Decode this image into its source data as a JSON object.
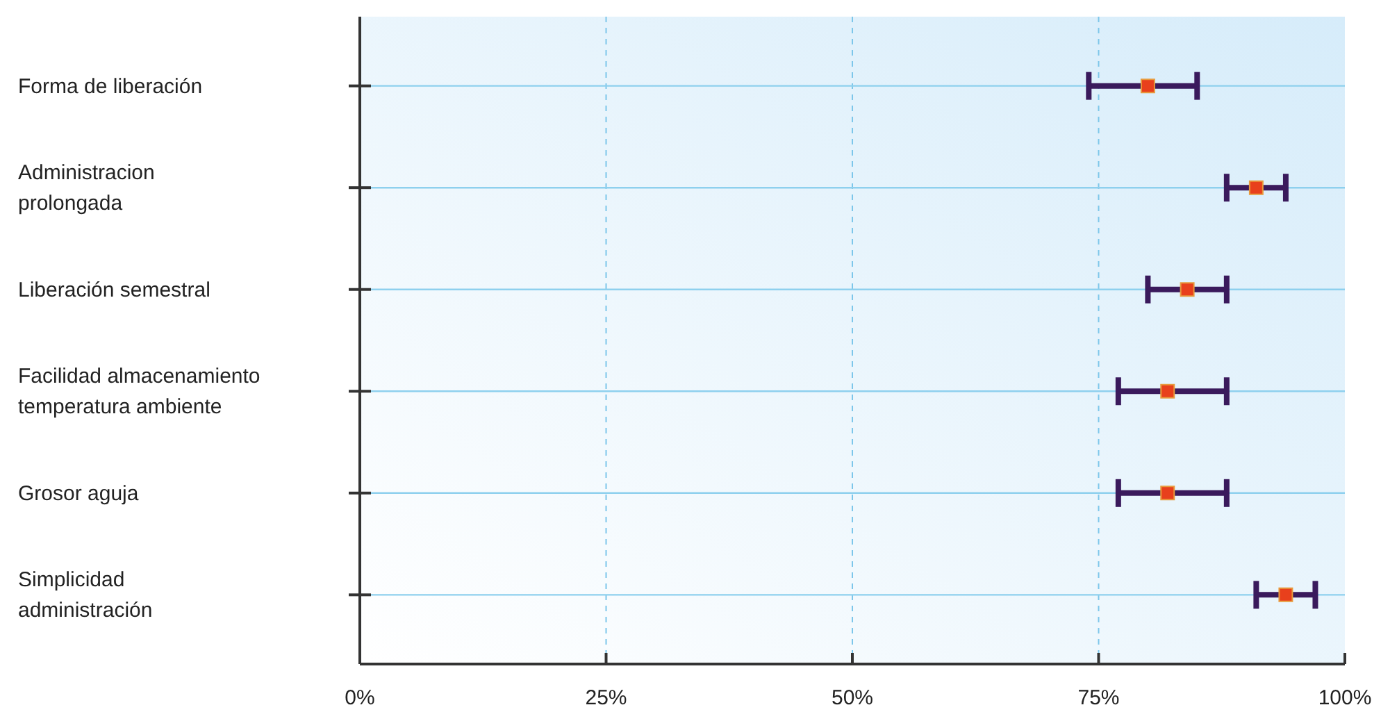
{
  "chart_data": {
    "type": "scatter",
    "orientation": "horizontal",
    "categories": [
      "Forma de liberación",
      "Administracion prolongada",
      "Liberación semestral",
      "Facilidad almacenamiento temperatura ambiente",
      "Grosor aguja",
      "Simplicidad administración"
    ],
    "values": [
      80,
      91,
      84,
      82,
      82,
      94
    ],
    "errors": [
      [
        74,
        85
      ],
      [
        88,
        94
      ],
      [
        80,
        88
      ],
      [
        77,
        88
      ],
      [
        77,
        88
      ],
      [
        91,
        97
      ]
    ],
    "color": "#e8401c",
    "marker": "square",
    "xlim": [
      0,
      100
    ],
    "xticks": [
      {
        "value": 0,
        "label": "0%"
      },
      {
        "value": 25,
        "label": "25%"
      },
      {
        "value": 50,
        "label": "50%"
      },
      {
        "value": 75,
        "label": "75%"
      },
      {
        "value": 100,
        "label": "100%"
      }
    ],
    "grid": true
  }
}
